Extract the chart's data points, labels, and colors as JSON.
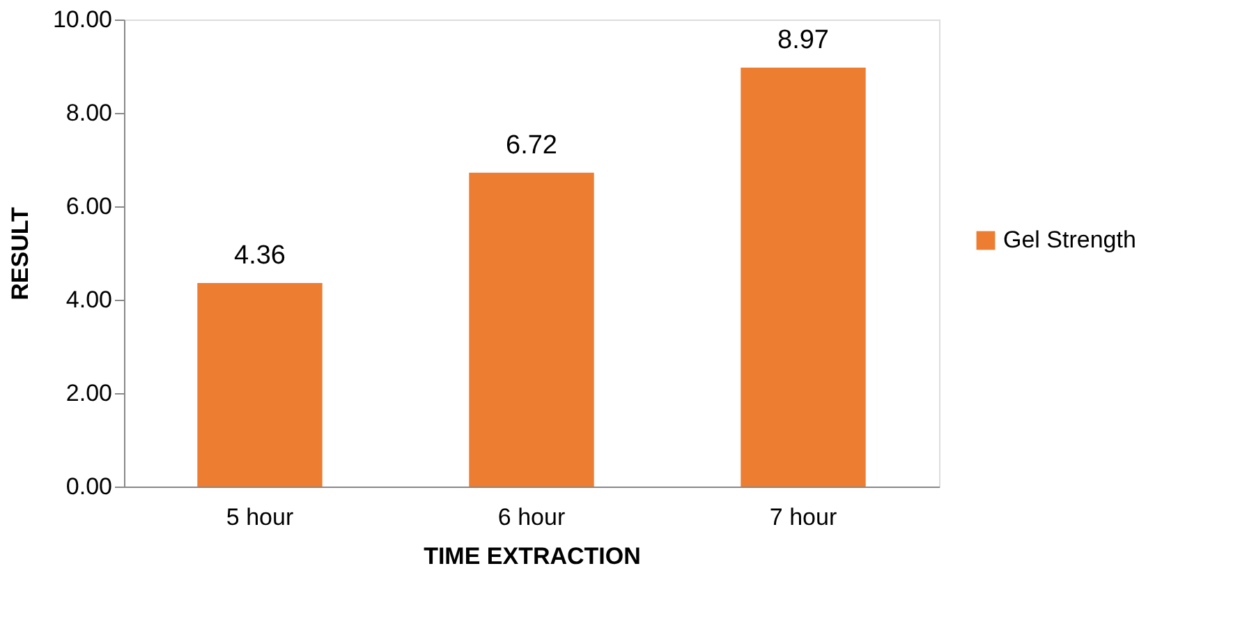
{
  "chart_data": {
    "type": "bar",
    "xlabel": "TIME EXTRACTION",
    "ylabel": "RESULT",
    "categories": [
      "5 hour",
      "6 hour",
      "7 hour"
    ],
    "series": [
      {
        "name": "Gel Strength",
        "color": "#ed7d31",
        "values": [
          4.36,
          6.72,
          8.97
        ]
      }
    ],
    "ylim": [
      0,
      10
    ],
    "yticks": [
      {
        "value": 0,
        "label": "0.00"
      },
      {
        "value": 2,
        "label": "2.00"
      },
      {
        "value": 4,
        "label": "4.00"
      },
      {
        "value": 6,
        "label": "6.00"
      },
      {
        "value": 8,
        "label": "8.00"
      },
      {
        "value": 10,
        "label": "10.00"
      }
    ],
    "data_labels": true,
    "legend": "right",
    "grid": false
  }
}
